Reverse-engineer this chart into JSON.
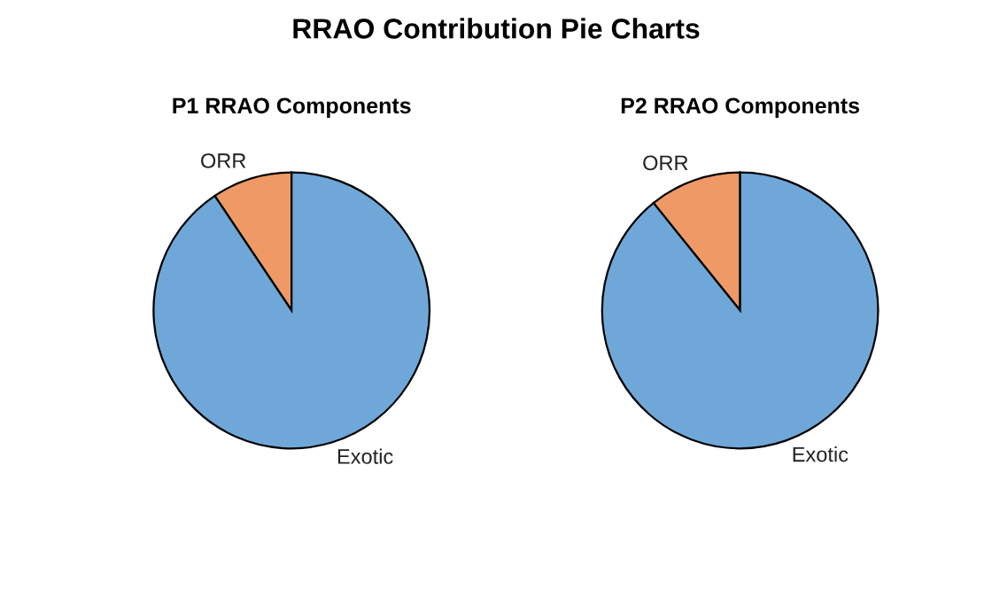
{
  "chart_data": [
    {
      "type": "pie",
      "title": "P1 RRAO Components",
      "annotations": [
        "RRAO Contribution Pie Charts"
      ],
      "categories": [
        "ORR",
        "Exotic"
      ],
      "values": [
        9.4,
        90.6
      ],
      "colors": [
        "#ee9966",
        "#6fa8d8"
      ]
    },
    {
      "type": "pie",
      "title": "P2 RRAO Components",
      "categories": [
        "ORR",
        "Exotic"
      ],
      "values": [
        10.8,
        89.2
      ],
      "colors": [
        "#ee9966",
        "#6fa8d8"
      ]
    }
  ]
}
